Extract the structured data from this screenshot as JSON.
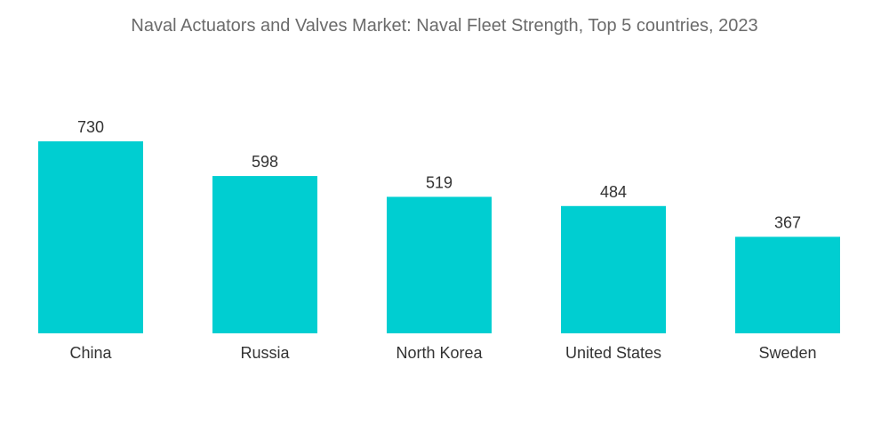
{
  "chart_data": {
    "type": "bar",
    "title": "Naval Actuators and Valves Market: Naval Fleet Strength, Top 5 countries, 2023",
    "categories": [
      "China",
      "Russia",
      "North Korea",
      "United States",
      "Sweden"
    ],
    "values": [
      730,
      598,
      519,
      484,
      367
    ],
    "xlabel": "",
    "ylabel": "",
    "ylim": [
      0,
      730
    ],
    "grid": false,
    "legend": "none",
    "data_labels": true,
    "bar_color": "#00CED1"
  }
}
